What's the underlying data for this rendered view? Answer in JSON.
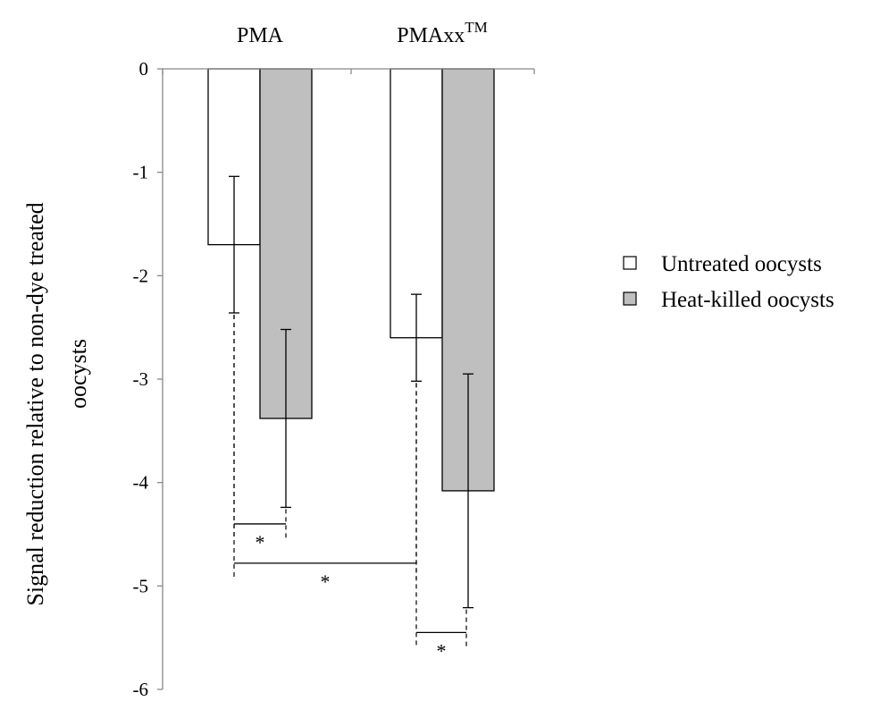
{
  "chart_data": {
    "type": "bar",
    "title": "",
    "xlabel": "",
    "ylabel": "Signal reduction relative to non-dye treated oocysts",
    "ylim": [
      -6,
      0
    ],
    "yticks": [
      "0",
      "-1",
      "-2",
      "-3",
      "-4",
      "-5",
      "-6"
    ],
    "categories": [
      "PMA",
      "PMAxx"
    ],
    "category_superscripts": [
      "",
      "TM"
    ],
    "grid": false,
    "legend_position": "right",
    "series": [
      {
        "name": "Untreated oocysts",
        "color": "#ffffff",
        "values": [
          -1.7,
          -2.6
        ],
        "error": [
          0.66,
          0.42
        ]
      },
      {
        "name": "Heat-killed oocysts",
        "color": "#bfbfbf",
        "values": [
          -3.38,
          -4.08
        ],
        "error": [
          0.86,
          1.13
        ]
      }
    ],
    "significance": [
      {
        "label": "*",
        "from": "PMA / Untreated oocysts",
        "to": "PMA / Heat-killed oocysts",
        "level": -4.4
      },
      {
        "label": "*",
        "from": "PMA / Untreated oocysts",
        "to": "PMAxx / Untreated oocysts",
        "level": -4.78
      },
      {
        "label": "*",
        "from": "PMAxx / Untreated oocysts",
        "to": "PMAxx / Heat-killed oocysts",
        "level": -5.45
      }
    ]
  }
}
